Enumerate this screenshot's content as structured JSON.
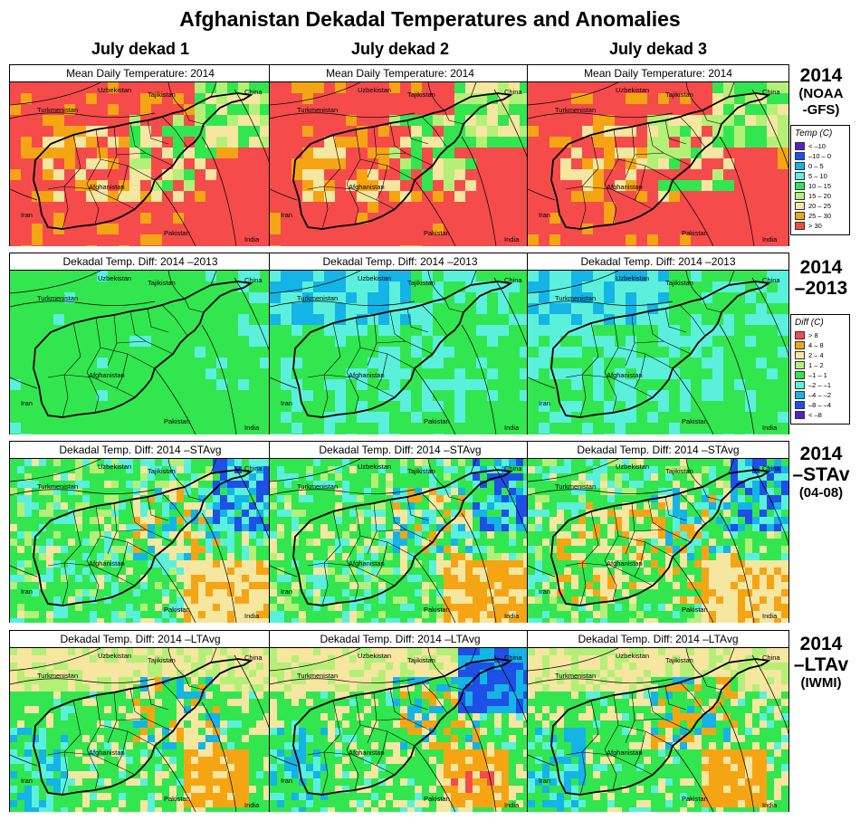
{
  "title": "Afghanistan Dekadal Temperatures and Anomalies",
  "columns": [
    "July dekad 1",
    "July dekad 2",
    "July dekad 3"
  ],
  "rows": [
    {
      "label_big": [
        "2014"
      ],
      "label_small": [
        "(NOAA",
        "-GFS)"
      ],
      "panel_title": "Mean Daily Temperature: 2014",
      "scheme": "temp"
    },
    {
      "label_big": [
        "2014",
        "–2013"
      ],
      "label_small": [],
      "panel_title": "Dekadal Temp. Diff:  2014 –2013",
      "scheme": "diff"
    },
    {
      "label_big": [
        "2014",
        "–STAv"
      ],
      "label_small": [
        "(04-08)"
      ],
      "panel_title": "Dekadal Temp. Diff:  2014 –STAvg",
      "scheme": "diff"
    },
    {
      "label_big": [
        "2014",
        "–LTAv"
      ],
      "label_small": [
        "(IWMI)"
      ],
      "panel_title": "Dekadal Temp. Diff:  2014 –LTAvg",
      "scheme": "diff"
    }
  ],
  "map_labels": {
    "uzbekistan": "Uzbekistan",
    "tajikistan": "Tajikistan",
    "china": "China",
    "turkmenistan": "Turkmenistan",
    "afghanistan": "Afghanistan",
    "iran": "Iran",
    "pakistan": "Pakistan",
    "india": "India"
  },
  "legends": {
    "temp": {
      "title": "Temp (C)",
      "entries": [
        {
          "label": "< –10",
          "color": "#5a1ec8"
        },
        {
          "label": "–10 –  0",
          "color": "#1e50e6"
        },
        {
          "label": "0 –  5",
          "color": "#14b4e6"
        },
        {
          "label": "5 – 10",
          "color": "#5af0dc"
        },
        {
          "label": "10 – 15",
          "color": "#32e650"
        },
        {
          "label": "15 – 20",
          "color": "#b4f078"
        },
        {
          "label": "20 – 25",
          "color": "#f5e6a0"
        },
        {
          "label": "25 – 30",
          "color": "#f5a514"
        },
        {
          "label": "> 30",
          "color": "#f54b4b"
        }
      ]
    },
    "diff": {
      "title": "Diff (C)",
      "entries": [
        {
          "label": "> 8",
          "color": "#f54b4b"
        },
        {
          "label": "4 – 8",
          "color": "#f5a514"
        },
        {
          "label": "2 – 4",
          "color": "#f5e6a0"
        },
        {
          "label": "1 – 2",
          "color": "#b4f078"
        },
        {
          "label": "–1 – 1",
          "color": "#32e650"
        },
        {
          "label": "–2 – –1",
          "color": "#5af0dc"
        },
        {
          "label": "–4 – –2",
          "color": "#14b4e6"
        },
        {
          "label": "–8 – –4",
          "color": "#1e50e6"
        },
        {
          "label": "< –8",
          "color": "#5a1ec8"
        }
      ]
    }
  }
}
